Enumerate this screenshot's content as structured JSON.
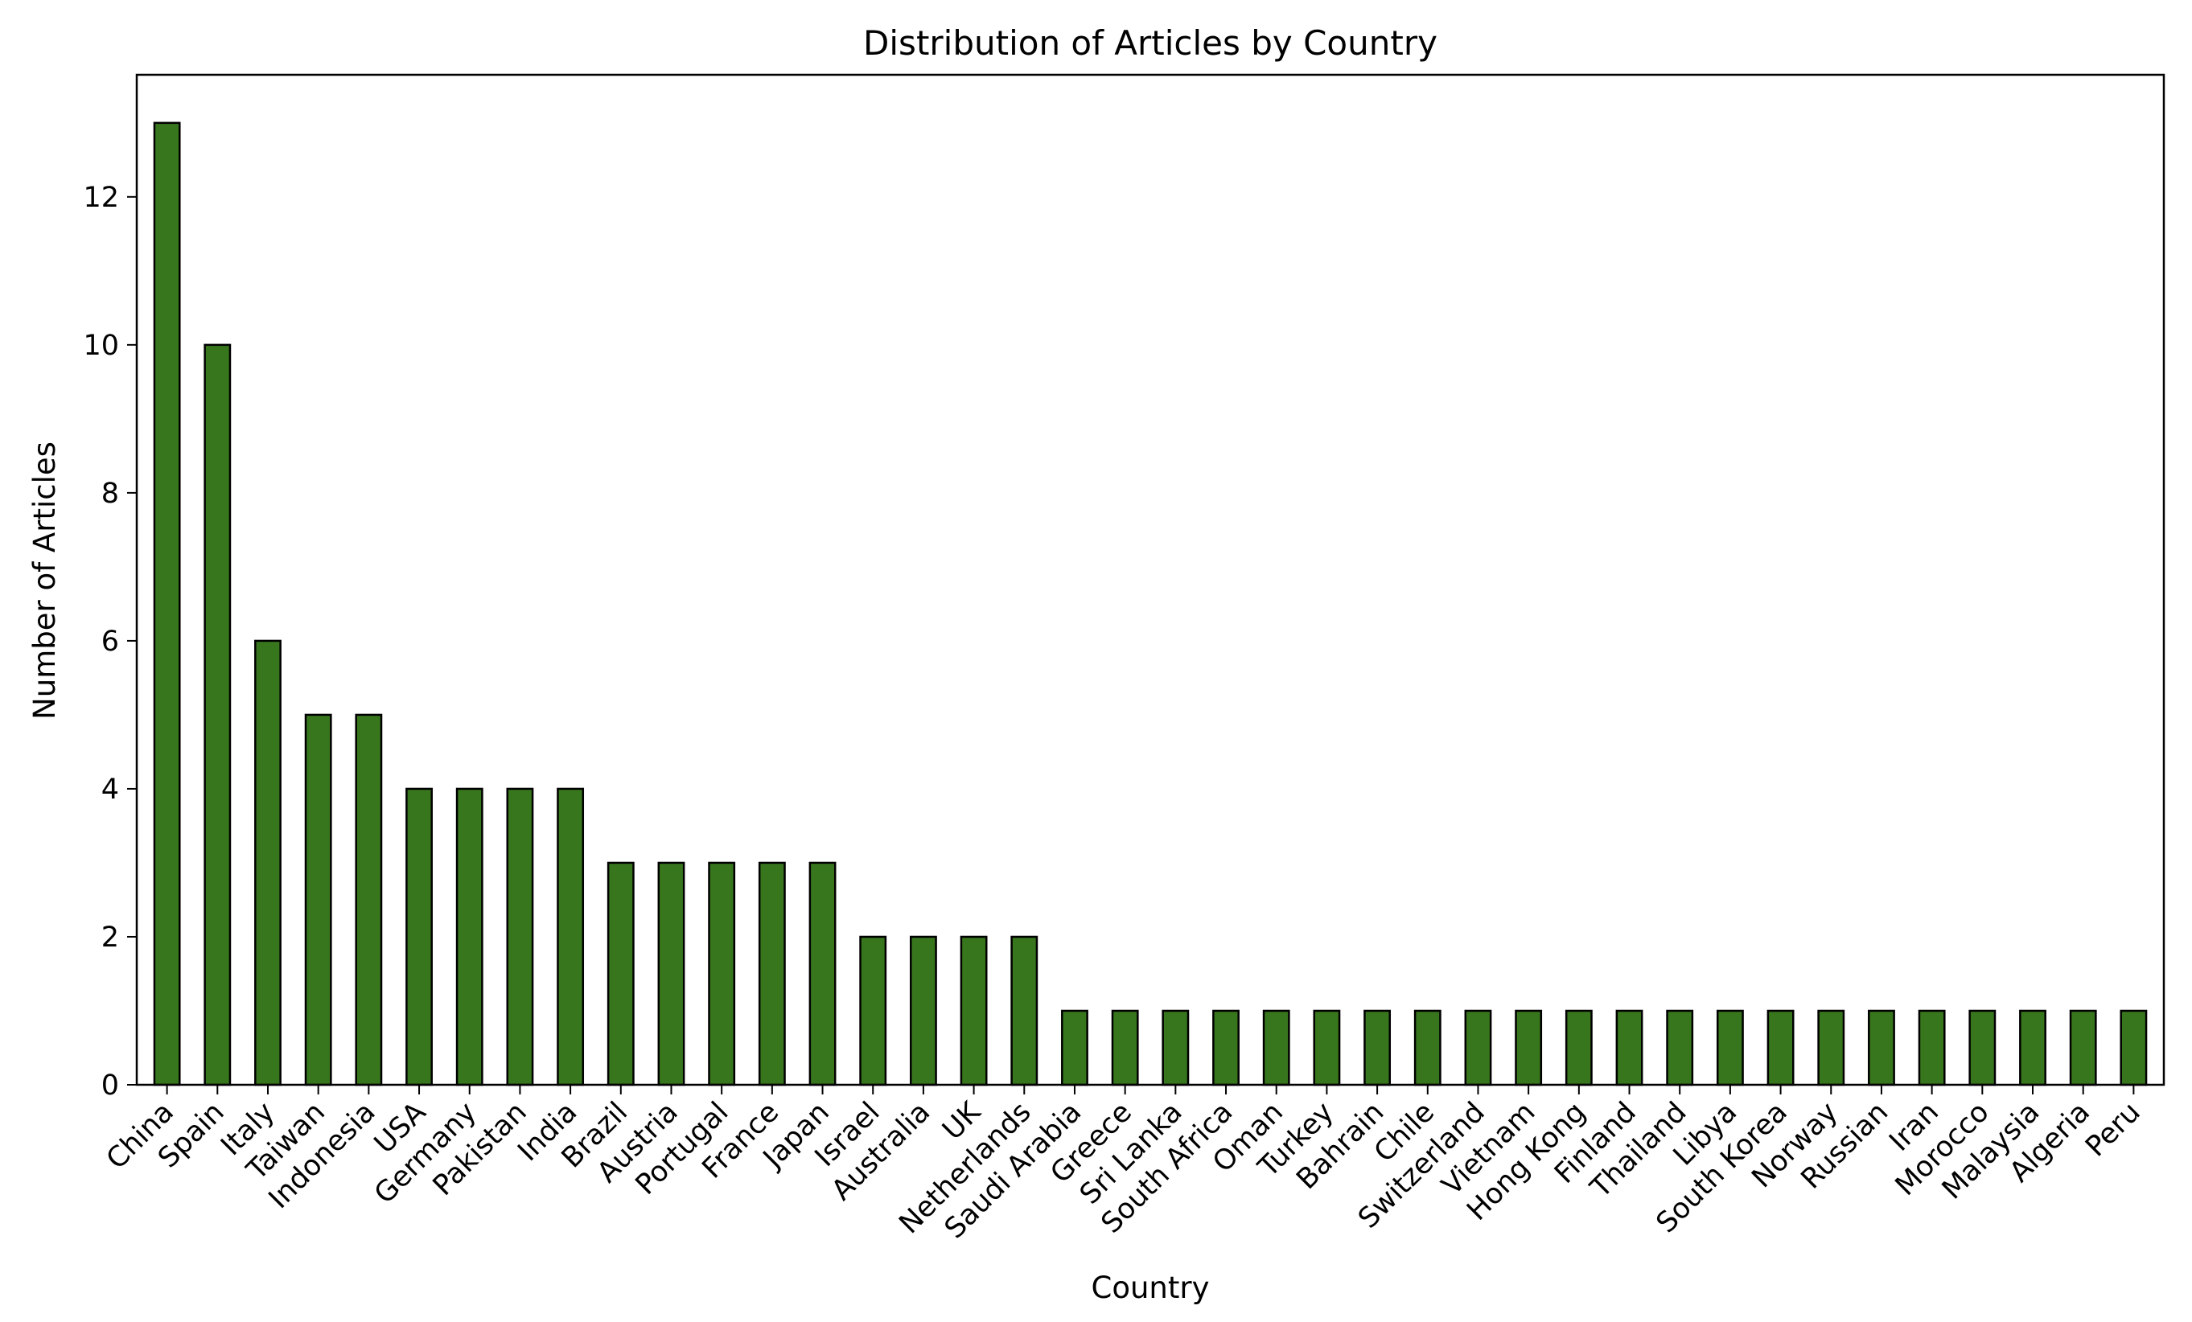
{
  "chart_data": {
    "type": "bar",
    "title": "Distribution of Articles by Country",
    "xlabel": "Country",
    "ylabel": "Number of Articles",
    "ylim": [
      0,
      13.65
    ],
    "yticks": [
      0,
      2,
      4,
      6,
      8,
      10,
      12
    ],
    "grid": false,
    "legend": "none",
    "bar_color": "#38761d",
    "edge_color": "#000000",
    "categories": [
      "China",
      "Spain",
      "Italy",
      "Taiwan",
      "Indonesia",
      "USA",
      "Germany",
      "Pakistan",
      "India",
      "Brazil",
      "Austria",
      "Portugal",
      "France",
      "Japan",
      "Israel",
      "Australia",
      "UK",
      "Netherlands",
      "Saudi Arabia",
      "Greece",
      "Sri Lanka",
      "South Africa",
      "Oman",
      "Turkey",
      "Bahrain",
      "Chile",
      "Switzerland",
      "Vietnam",
      "Hong Kong",
      "Finland",
      "Thailand",
      "Libya",
      "South Korea",
      "Norway",
      "Russian",
      "Iran",
      "Morocco",
      "Malaysia",
      "Algeria",
      "Peru"
    ],
    "values": [
      13,
      10,
      6,
      5,
      5,
      4,
      4,
      4,
      4,
      3,
      3,
      3,
      3,
      3,
      2,
      2,
      2,
      2,
      1,
      1,
      1,
      1,
      1,
      1,
      1,
      1,
      1,
      1,
      1,
      1,
      1,
      1,
      1,
      1,
      1,
      1,
      1,
      1,
      1,
      1
    ]
  }
}
